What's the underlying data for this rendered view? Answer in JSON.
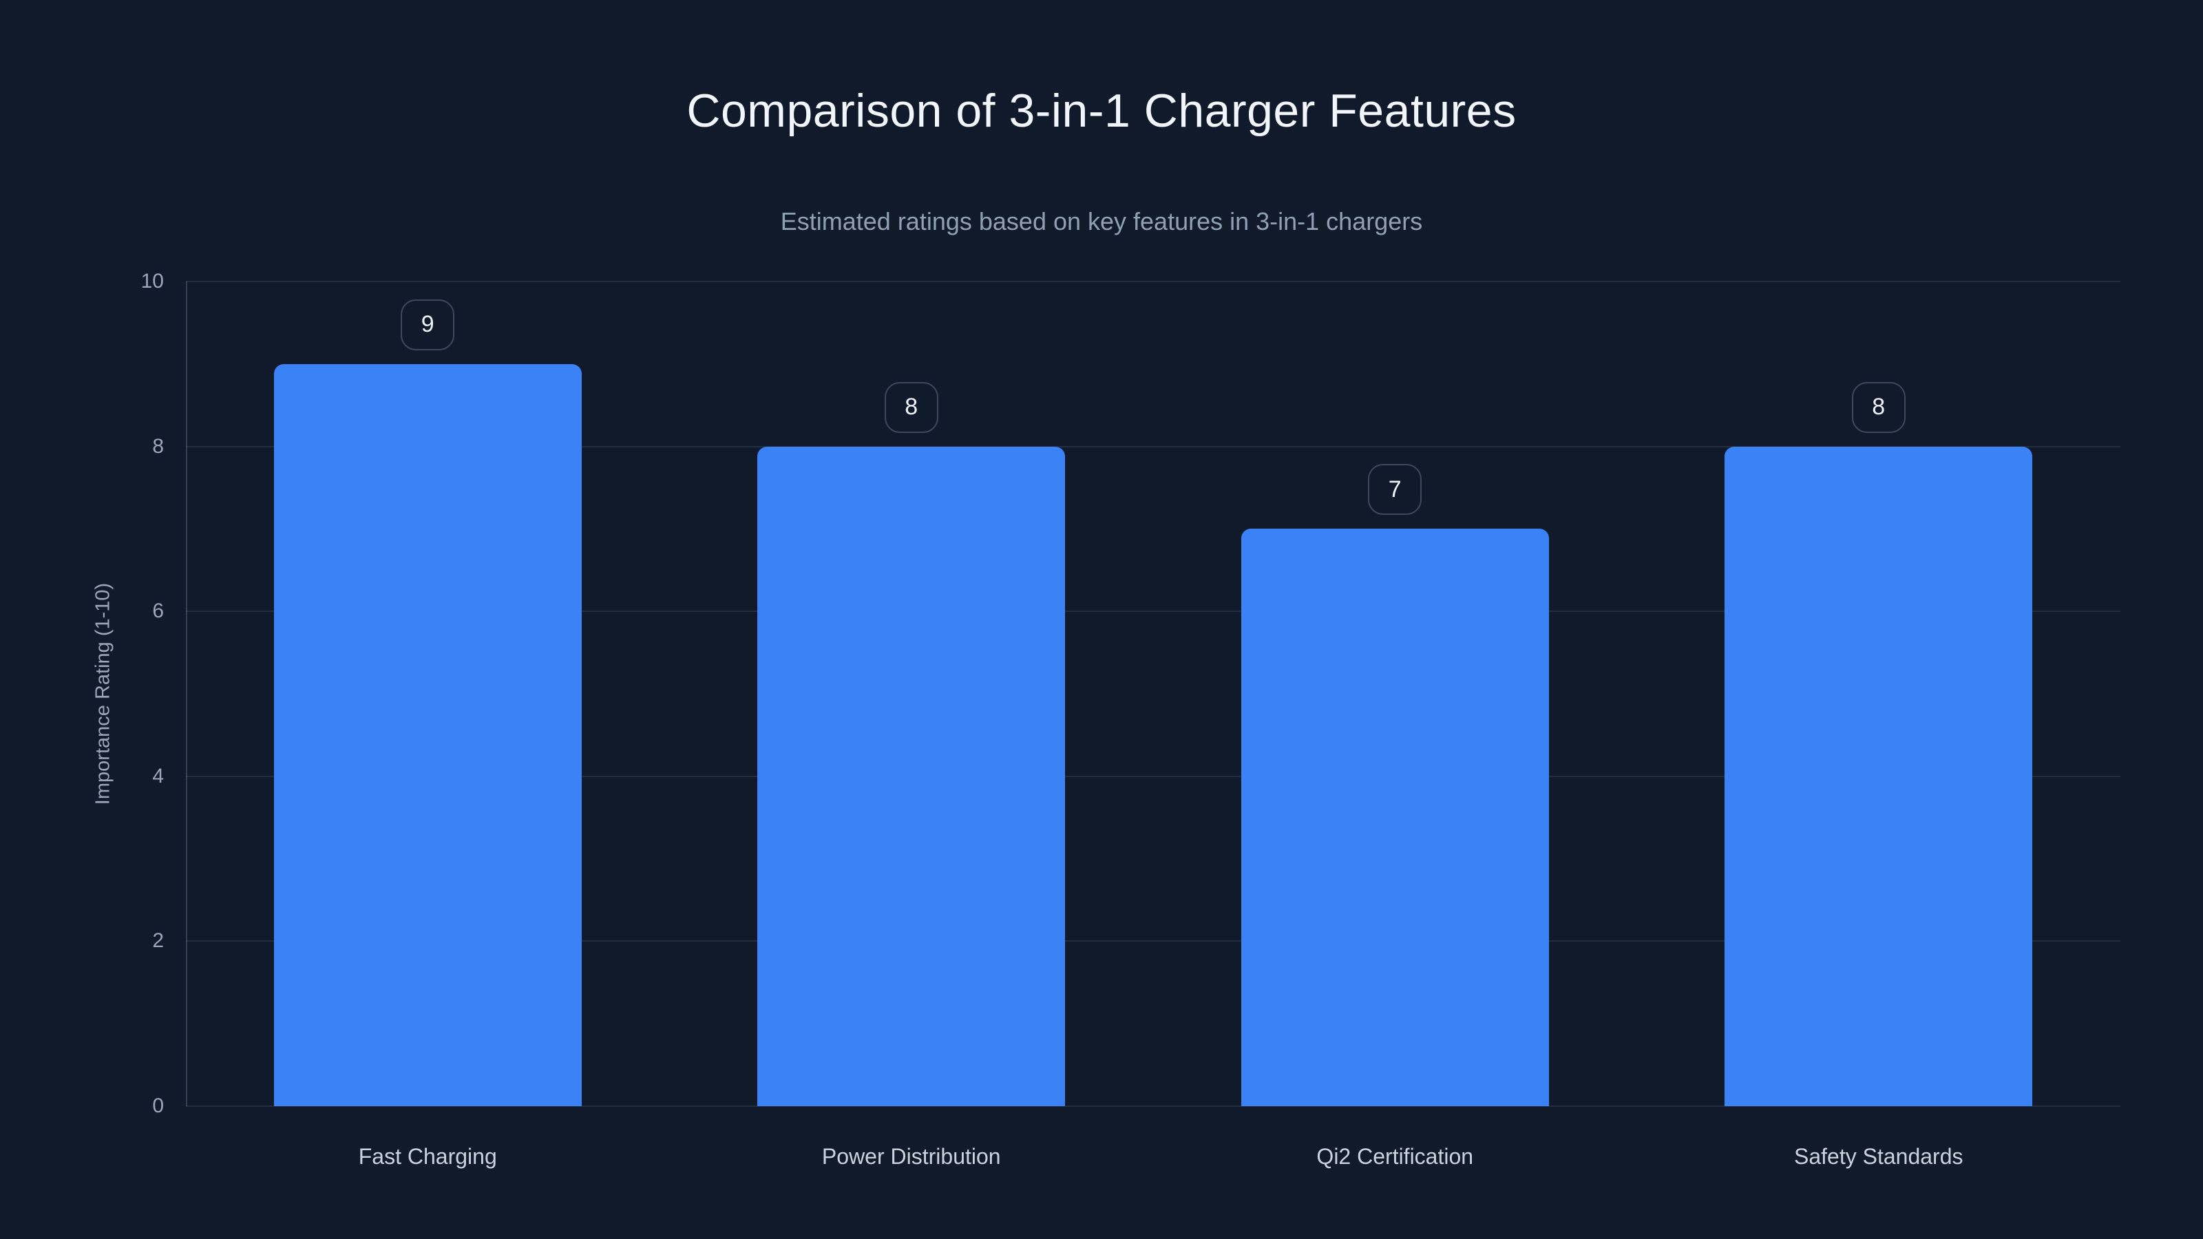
{
  "chart_data": {
    "type": "bar",
    "title": "Comparison of 3-in-1 Charger Features",
    "subtitle": "Estimated ratings based on key features in 3-in-1 chargers",
    "categories": [
      "Fast Charging",
      "Power Distribution",
      "Qi2 Certification",
      "Safety Standards"
    ],
    "values": [
      9,
      8,
      7,
      8
    ],
    "value_labels": [
      "9",
      "8",
      "7",
      "8"
    ],
    "xlabel": "",
    "ylabel": "Importance Rating (1-10)",
    "ylim": [
      0,
      10
    ],
    "yticks": [
      0,
      2,
      4,
      6,
      8,
      10
    ],
    "grid": true,
    "legend": false,
    "bar_color": "#3b82f6",
    "background_color": "#101a2b",
    "badge_border_color": "#3e495d",
    "title_color": "#f2f6fa",
    "subtitle_color": "#8fa0b5",
    "tick_color": "#9aa6ba",
    "category_label_color": "#cbd2dd"
  }
}
